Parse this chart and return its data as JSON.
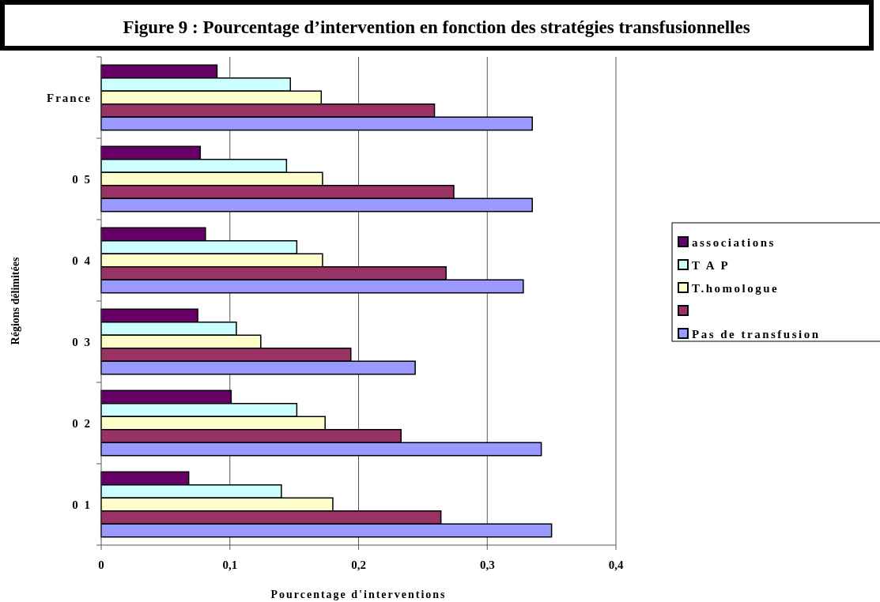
{
  "chart_data": {
    "type": "bar",
    "orientation": "horizontal",
    "title": "Figure 9 : Pourcentage d’intervention en fonction des stratégies transfusionnelles",
    "xlabel": "Pourcentage d'interventions",
    "ylabel": "Régions délimitées",
    "categories": [
      "France",
      "0 5",
      "0 4",
      "0 3",
      "0 2",
      "0 1"
    ],
    "series": [
      {
        "name": "associations",
        "color": "#660066",
        "values": [
          0.09,
          0.077,
          0.081,
          0.075,
          0.101,
          0.068
        ]
      },
      {
        "name": "T A P",
        "color": "#ccffff",
        "values": [
          0.147,
          0.144,
          0.152,
          0.105,
          0.152,
          0.14
        ]
      },
      {
        "name": "T.homologue",
        "color": "#ffffcc",
        "values": [
          0.171,
          0.172,
          0.172,
          0.124,
          0.174,
          0.18
        ]
      },
      {
        "color": "#993366",
        "values": [
          0.259,
          0.274,
          0.268,
          0.194,
          0.233,
          0.264
        ]
      },
      {
        "name": "Pas de transfusion",
        "color": "#9999ff",
        "values": [
          0.335,
          0.335,
          0.328,
          0.244,
          0.342,
          0.35
        ]
      }
    ],
    "xlim": [
      0,
      0.4
    ],
    "xticks": [
      0,
      {
        "value": 0.1,
        "label": "0,1"
      },
      {
        "value": 0.2,
        "label": "0,2"
      },
      {
        "value": 0.3,
        "label": "0,3"
      },
      {
        "value": 0.4,
        "label": "0,4"
      }
    ],
    "grid": "x",
    "legend": "right"
  }
}
